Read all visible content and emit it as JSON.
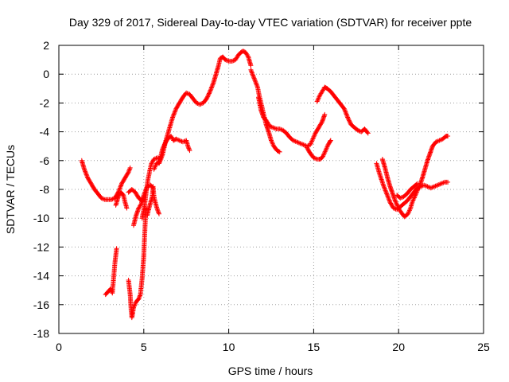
{
  "chart_data": {
    "type": "scatter",
    "title": "Day 329 of 2017, Sidereal Day-to-day VTEC variation (SDTVAR) for receiver ppte",
    "xlabel": "GPS time / hours",
    "ylabel": "SDTVAR / TECUs",
    "xlim": [
      0,
      25
    ],
    "ylim": [
      -18,
      2
    ],
    "xticks": [
      0,
      5,
      10,
      15,
      20,
      25
    ],
    "yticks": [
      -18,
      -16,
      -14,
      -12,
      -10,
      -8,
      -6,
      -4,
      -2,
      0,
      2
    ],
    "grid": true,
    "marker": "plus",
    "color": "#ff0000",
    "series": [
      {
        "segments": [
          [
            [
              1.35,
              -6.0
            ],
            [
              1.5,
              -6.6
            ],
            [
              1.7,
              -7.2
            ],
            [
              1.9,
              -7.6
            ],
            [
              2.1,
              -8.0
            ],
            [
              2.3,
              -8.3
            ],
            [
              2.5,
              -8.6
            ],
            [
              2.7,
              -8.7
            ],
            [
              2.9,
              -8.7
            ],
            [
              3.1,
              -8.7
            ],
            [
              3.3,
              -8.6
            ]
          ],
          [
            [
              3.3,
              -8.6
            ],
            [
              3.5,
              -8.2
            ],
            [
              3.7,
              -7.6
            ],
            [
              3.9,
              -7.2
            ],
            [
              4.1,
              -6.8
            ],
            [
              4.2,
              -6.5
            ]
          ],
          [
            [
              3.35,
              -9.1
            ],
            [
              3.5,
              -8.5
            ],
            [
              3.65,
              -8.2
            ],
            [
              3.8,
              -8.4
            ],
            [
              3.9,
              -8.9
            ],
            [
              4.0,
              -9.3
            ]
          ],
          [
            [
              2.75,
              -15.3
            ],
            [
              2.9,
              -15.1
            ],
            [
              3.05,
              -14.9
            ],
            [
              3.15,
              -15.2
            ],
            [
              3.2,
              -14.5
            ],
            [
              3.25,
              -13.8
            ],
            [
              3.3,
              -13.1
            ],
            [
              3.35,
              -12.6
            ],
            [
              3.4,
              -12.1
            ]
          ],
          [
            [
              4.1,
              -8.2
            ],
            [
              4.3,
              -8.0
            ],
            [
              4.5,
              -8.2
            ],
            [
              4.7,
              -8.6
            ],
            [
              4.9,
              -8.8
            ],
            [
              5.0,
              -8.6
            ]
          ],
          [
            [
              4.1,
              -14.3
            ],
            [
              4.2,
              -15.3
            ],
            [
              4.25,
              -16.3
            ],
            [
              4.3,
              -16.9
            ],
            [
              4.4,
              -16.2
            ],
            [
              4.55,
              -15.8
            ],
            [
              4.7,
              -15.6
            ],
            [
              4.8,
              -15.3
            ],
            [
              4.9,
              -14.2
            ],
            [
              5.0,
              -12.6
            ],
            [
              5.05,
              -11.2
            ],
            [
              5.1,
              -9.9
            ],
            [
              5.15,
              -9.3
            ]
          ],
          [
            [
              4.4,
              -10.5
            ],
            [
              4.55,
              -9.8
            ],
            [
              4.7,
              -9.3
            ],
            [
              4.85,
              -9.0
            ],
            [
              5.0,
              -8.4
            ],
            [
              5.2,
              -7.8
            ],
            [
              5.4,
              -7.7
            ],
            [
              5.55,
              -7.9
            ]
          ],
          [
            [
              5.2,
              -9.8
            ],
            [
              5.35,
              -9.1
            ],
            [
              5.5,
              -8.5
            ],
            [
              5.55,
              -7.8
            ],
            [
              5.6,
              -8.5
            ],
            [
              5.7,
              -9.0
            ],
            [
              5.8,
              -9.4
            ],
            [
              5.9,
              -9.7
            ]
          ],
          [
            [
              4.9,
              -10.0
            ],
            [
              5.05,
              -9.1
            ],
            [
              5.15,
              -8.1
            ],
            [
              5.25,
              -7.3
            ],
            [
              5.35,
              -6.7
            ],
            [
              5.45,
              -6.2
            ],
            [
              5.6,
              -5.9
            ],
            [
              5.8,
              -5.8
            ],
            [
              6.0,
              -5.9
            ]
          ],
          [
            [
              5.6,
              -6.6
            ],
            [
              5.75,
              -6.2
            ],
            [
              5.9,
              -6.1
            ],
            [
              6.0,
              -5.7
            ],
            [
              6.1,
              -5.2
            ],
            [
              6.25,
              -4.8
            ],
            [
              6.4,
              -4.5
            ],
            [
              6.6,
              -4.3
            ],
            [
              6.75,
              -4.6
            ],
            [
              6.9,
              -4.5
            ],
            [
              7.1,
              -4.6
            ],
            [
              7.3,
              -4.7
            ],
            [
              7.5,
              -4.6
            ],
            [
              7.6,
              -5.0
            ],
            [
              7.7,
              -5.3
            ]
          ],
          [
            [
              5.9,
              -6.2
            ],
            [
              6.1,
              -5.6
            ],
            [
              6.3,
              -4.6
            ],
            [
              6.5,
              -3.8
            ],
            [
              6.7,
              -3.0
            ],
            [
              6.9,
              -2.4
            ],
            [
              7.1,
              -2.0
            ],
            [
              7.3,
              -1.6
            ],
            [
              7.5,
              -1.3
            ],
            [
              7.7,
              -1.4
            ],
            [
              7.9,
              -1.7
            ],
            [
              8.1,
              -2.0
            ],
            [
              8.3,
              -2.1
            ],
            [
              8.5,
              -2.0
            ],
            [
              8.7,
              -1.7
            ],
            [
              8.9,
              -1.2
            ],
            [
              9.1,
              -0.6
            ],
            [
              9.25,
              0.0
            ],
            [
              9.4,
              0.6
            ],
            [
              9.5,
              1.1
            ],
            [
              9.65,
              1.2
            ],
            [
              9.8,
              1.0
            ],
            [
              10.0,
              0.9
            ],
            [
              10.2,
              0.9
            ],
            [
              10.4,
              1.0
            ],
            [
              10.55,
              1.3
            ],
            [
              10.7,
              1.5
            ],
            [
              10.85,
              1.6
            ],
            [
              11.0,
              1.5
            ],
            [
              11.15,
              1.2
            ],
            [
              11.3,
              0.6
            ]
          ],
          [
            [
              11.3,
              0.3
            ],
            [
              11.5,
              -0.3
            ],
            [
              11.7,
              -0.9
            ],
            [
              11.8,
              -1.5
            ],
            [
              11.9,
              -2.0
            ],
            [
              12.0,
              -2.5
            ],
            [
              12.1,
              -3.0
            ],
            [
              12.2,
              -3.5
            ],
            [
              12.35,
              -4.0
            ],
            [
              12.5,
              -4.6
            ],
            [
              12.65,
              -5.0
            ],
            [
              12.85,
              -5.3
            ],
            [
              13.0,
              -5.4
            ]
          ],
          [
            [
              11.75,
              -1.6
            ],
            [
              11.9,
              -2.5
            ],
            [
              12.05,
              -3.0
            ],
            [
              12.2,
              -3.2
            ],
            [
              12.4,
              -3.6
            ],
            [
              12.6,
              -3.7
            ],
            [
              12.8,
              -3.8
            ],
            [
              13.0,
              -3.8
            ],
            [
              13.2,
              -3.9
            ],
            [
              13.4,
              -4.1
            ],
            [
              13.6,
              -4.4
            ],
            [
              13.8,
              -4.6
            ],
            [
              14.0,
              -4.7
            ],
            [
              14.2,
              -4.8
            ],
            [
              14.4,
              -4.9
            ],
            [
              14.6,
              -5.0
            ],
            [
              14.8,
              -4.9
            ],
            [
              14.95,
              -4.5
            ],
            [
              15.1,
              -4.1
            ],
            [
              15.3,
              -3.7
            ],
            [
              15.5,
              -3.3
            ],
            [
              15.65,
              -2.8
            ]
          ],
          [
            [
              14.6,
              -5.1
            ],
            [
              14.8,
              -5.5
            ],
            [
              15.0,
              -5.8
            ],
            [
              15.2,
              -5.9
            ],
            [
              15.4,
              -5.9
            ],
            [
              15.55,
              -5.7
            ],
            [
              15.7,
              -5.3
            ],
            [
              15.85,
              -4.9
            ],
            [
              15.95,
              -4.7
            ],
            [
              16.0,
              -4.6
            ]
          ],
          [
            [
              15.2,
              -1.9
            ],
            [
              15.35,
              -1.5
            ],
            [
              15.5,
              -1.2
            ],
            [
              15.65,
              -0.9
            ],
            [
              15.8,
              -1.0
            ],
            [
              16.0,
              -1.2
            ],
            [
              16.2,
              -1.5
            ],
            [
              16.4,
              -1.8
            ],
            [
              16.6,
              -2.1
            ],
            [
              16.8,
              -2.4
            ],
            [
              17.0,
              -3.0
            ],
            [
              17.2,
              -3.5
            ],
            [
              17.4,
              -3.7
            ],
            [
              17.6,
              -3.9
            ],
            [
              17.8,
              -4.0
            ],
            [
              18.0,
              -3.8
            ],
            [
              18.2,
              -4.1
            ]
          ],
          [
            [
              18.7,
              -6.2
            ],
            [
              18.9,
              -7.0
            ],
            [
              19.1,
              -7.7
            ],
            [
              19.3,
              -8.3
            ],
            [
              19.5,
              -8.9
            ],
            [
              19.7,
              -9.3
            ],
            [
              19.9,
              -9.4
            ],
            [
              20.1,
              -9.2
            ],
            [
              20.3,
              -9.0
            ],
            [
              20.5,
              -8.8
            ],
            [
              20.7,
              -8.5
            ],
            [
              20.9,
              -8.2
            ],
            [
              21.1,
              -7.9
            ],
            [
              21.3,
              -7.8
            ],
            [
              21.5,
              -7.7
            ],
            [
              21.7,
              -7.8
            ],
            [
              21.9,
              -7.9
            ],
            [
              22.1,
              -7.8
            ],
            [
              22.3,
              -7.7
            ],
            [
              22.5,
              -7.6
            ],
            [
              22.7,
              -7.5
            ],
            [
              22.9,
              -7.5
            ]
          ],
          [
            [
              19.05,
              -5.9
            ],
            [
              19.2,
              -6.5
            ],
            [
              19.35,
              -7.2
            ],
            [
              19.5,
              -7.8
            ],
            [
              19.65,
              -8.3
            ],
            [
              19.8,
              -8.8
            ],
            [
              20.0,
              -9.3
            ],
            [
              20.15,
              -9.6
            ],
            [
              20.35,
              -9.9
            ],
            [
              20.55,
              -9.7
            ],
            [
              20.7,
              -9.3
            ],
            [
              20.8,
              -8.9
            ],
            [
              20.95,
              -8.5
            ],
            [
              21.1,
              -8.1
            ],
            [
              21.25,
              -7.7
            ],
            [
              21.4,
              -7.2
            ],
            [
              21.55,
              -6.6
            ],
            [
              21.7,
              -6.0
            ],
            [
              21.85,
              -5.5
            ],
            [
              22.0,
              -5.0
            ],
            [
              22.2,
              -4.7
            ],
            [
              22.4,
              -4.6
            ],
            [
              22.6,
              -4.5
            ],
            [
              22.8,
              -4.3
            ],
            [
              22.9,
              -4.3
            ]
          ],
          [
            [
              19.9,
              -8.4
            ],
            [
              20.1,
              -8.6
            ],
            [
              20.3,
              -8.5
            ],
            [
              20.5,
              -8.3
            ],
            [
              20.7,
              -8.0
            ],
            [
              20.9,
              -7.8
            ],
            [
              21.1,
              -7.6
            ]
          ]
        ]
      }
    ]
  }
}
